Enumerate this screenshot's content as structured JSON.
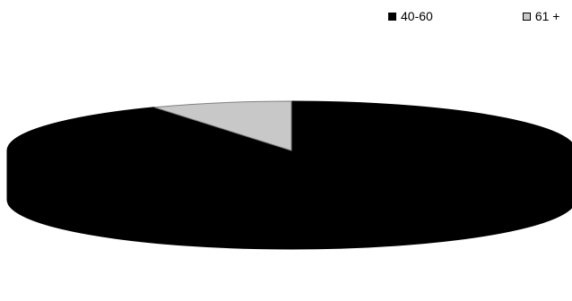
{
  "chart_data": {
    "type": "pie",
    "style": "3d",
    "labels": [
      "40-60",
      "61 +"
    ],
    "values": [
      92,
      8
    ],
    "colors": [
      "#000000",
      "#c8c8c8"
    ],
    "legend_position": "top-right",
    "title": ""
  }
}
